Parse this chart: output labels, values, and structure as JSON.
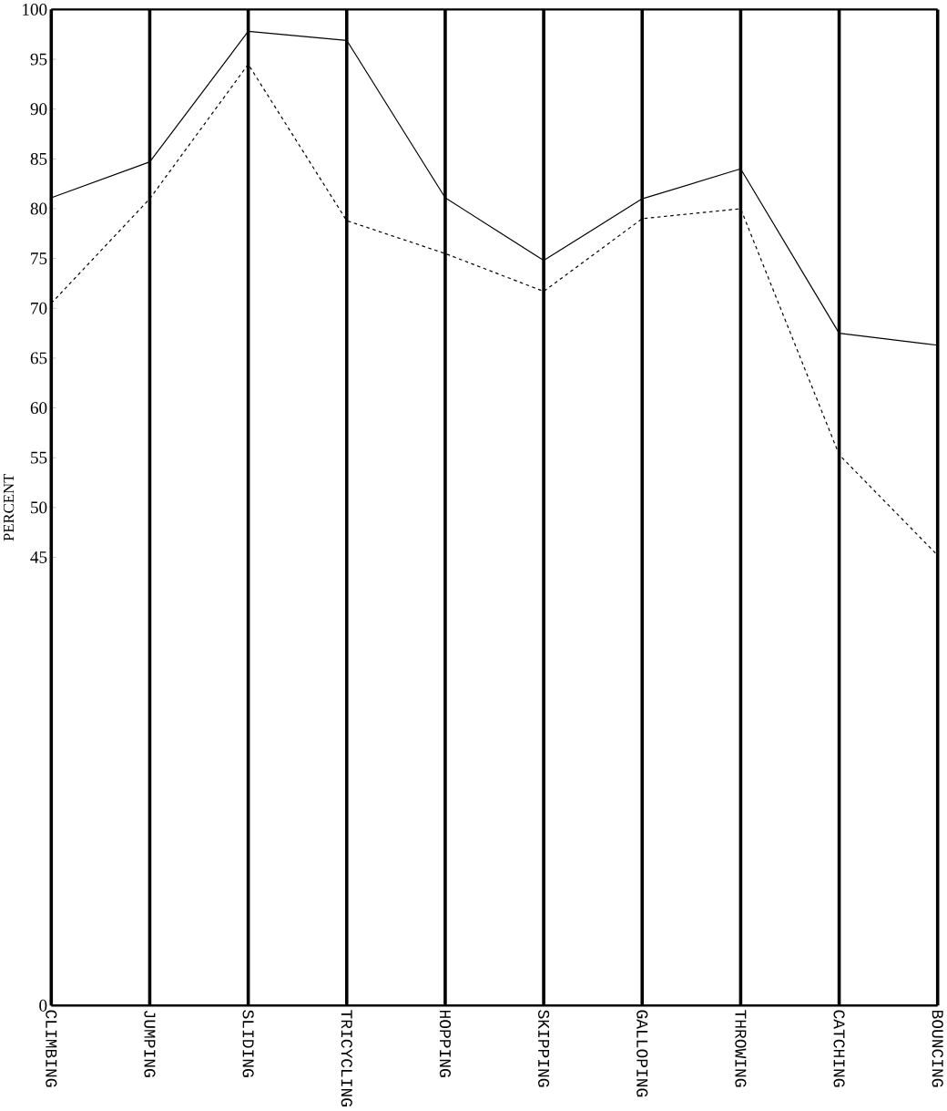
{
  "chart_data": {
    "type": "line",
    "ylabel": "PERCENT",
    "categories": [
      "CLIMBING",
      "JUMPING",
      "SLIDING",
      "TRICYCLING",
      "HOPPING",
      "SKIPPING",
      "GALLOPING",
      "THROWING",
      "CATCHING",
      "BOUNCING"
    ],
    "series": [
      {
        "color": "#000000",
        "line_style": "solid",
        "values": [
          81.1,
          84.7,
          97.8,
          96.9,
          81.1,
          74.8,
          81,
          84,
          67.5,
          66.3
        ]
      },
      {
        "color": "#000000",
        "line_style": "dashed",
        "values": [
          70.5,
          81,
          94.5,
          78.8,
          75.5,
          71.7,
          79,
          80,
          55.3,
          45.2
        ]
      }
    ],
    "ylim": [
      0,
      100
    ],
    "yticks": [
      0,
      45,
      50,
      55,
      60,
      65,
      70,
      75,
      80,
      85,
      90,
      95,
      100
    ],
    "grid": "x",
    "marker": "none"
  }
}
